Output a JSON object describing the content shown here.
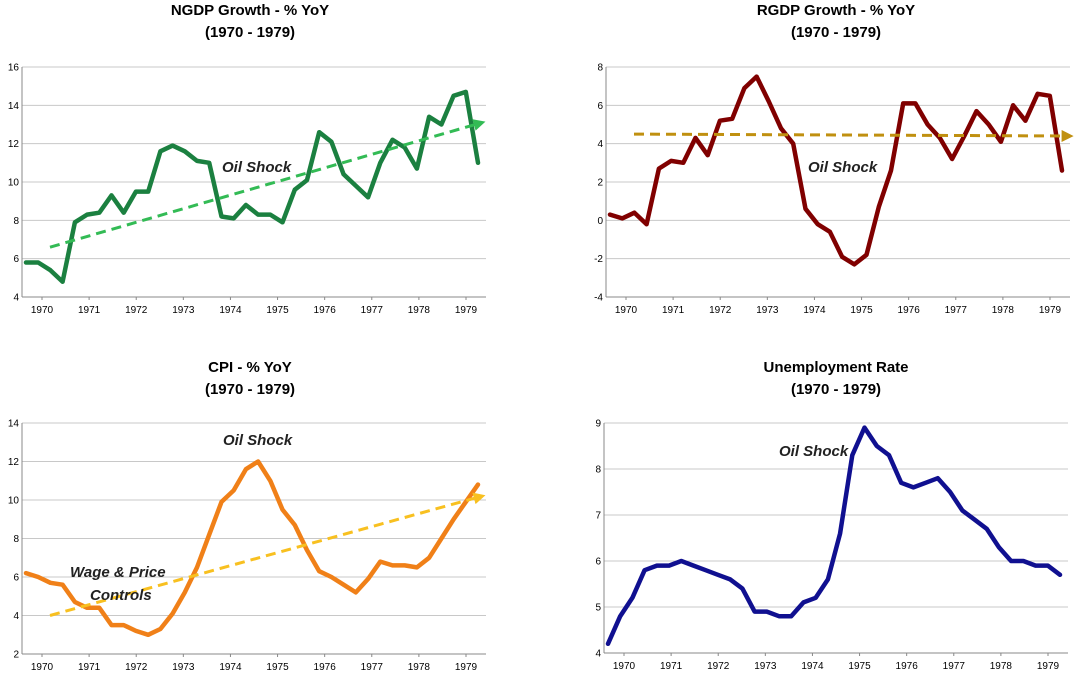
{
  "x_ticks": [
    "1970",
    "1971",
    "1972",
    "1973",
    "1974",
    "1975",
    "1976",
    "1977",
    "1978",
    "1979"
  ],
  "chart_data": [
    {
      "type": "line",
      "title": "NGDP Growth - % YoY",
      "subtitle": "(1970 - 1979)",
      "ylim": [
        4,
        16
      ],
      "yticks": [
        "4",
        "6",
        "8",
        "10",
        "12",
        "14",
        "16"
      ],
      "color": "#1B8040",
      "trend_color": "#33BB55",
      "series": [
        {
          "values": [
            5.8,
            5.8,
            5.4,
            4.8,
            7.9,
            8.3,
            8.4,
            9.3,
            8.4,
            9.5,
            9.5,
            11.6,
            11.9,
            11.6,
            11.1,
            11.0,
            8.2,
            8.1,
            8.8,
            8.3,
            8.3,
            7.9,
            9.6,
            10.1,
            12.6,
            12.1,
            10.4,
            9.8,
            9.2,
            11.0,
            12.2,
            11.8,
            10.7,
            13.4,
            13.0,
            14.5,
            14.7,
            11.0
          ]
        }
      ],
      "trend": [
        6.6,
        13.1
      ],
      "annotations": [
        "Oil Shock"
      ],
      "grid": true
    },
    {
      "type": "line",
      "title": "RGDP Growth - % YoY",
      "subtitle": "(1970 - 1979)",
      "ylim": [
        -4,
        8
      ],
      "yticks": [
        "-4",
        "-2",
        "0",
        "2",
        "4",
        "6",
        "8"
      ],
      "color": "#800000",
      "trend_color": "#C09010",
      "series": [
        {
          "values": [
            0.3,
            0.1,
            0.4,
            -0.2,
            2.7,
            3.1,
            3.0,
            4.3,
            3.4,
            5.2,
            5.3,
            6.9,
            7.5,
            6.2,
            4.8,
            4.0,
            0.6,
            -0.2,
            -0.6,
            -1.9,
            -2.3,
            -1.8,
            0.7,
            2.6,
            6.1,
            6.1,
            5.0,
            4.3,
            3.2,
            4.4,
            5.7,
            5.0,
            4.1,
            6.0,
            5.2,
            6.6,
            6.5,
            2.6
          ]
        }
      ],
      "trend": [
        4.5,
        4.4
      ],
      "annotations": [
        "Oil Shock"
      ],
      "grid": true
    },
    {
      "type": "line",
      "title": "CPI - % YoY",
      "subtitle": "(1970 - 1979)",
      "ylim": [
        2,
        14
      ],
      "yticks": [
        "2",
        "4",
        "6",
        "8",
        "10",
        "12",
        "14"
      ],
      "color": "#F08018",
      "trend_color": "#F8C020",
      "series": [
        {
          "values": [
            6.2,
            6.0,
            5.7,
            5.6,
            4.7,
            4.4,
            4.4,
            3.5,
            3.5,
            3.2,
            3.0,
            3.3,
            4.1,
            5.2,
            6.5,
            8.2,
            9.9,
            10.5,
            11.6,
            12.0,
            11.0,
            9.5,
            8.7,
            7.4,
            6.3,
            6.0,
            5.6,
            5.2,
            5.9,
            6.8,
            6.6,
            6.6,
            6.5,
            7.0,
            8.0,
            9.0,
            9.9,
            10.8
          ]
        }
      ],
      "trend": [
        4.0,
        10.2
      ],
      "annotations": [
        "Oil Shock",
        "Wage & Price",
        "Controls"
      ],
      "grid": true
    },
    {
      "type": "line",
      "title": "Unemployment Rate",
      "subtitle": "(1970 - 1979)",
      "ylim": [
        4,
        9
      ],
      "yticks": [
        "4",
        "5",
        "6",
        "7",
        "8",
        "9"
      ],
      "color": "#101090",
      "series": [
        {
          "values": [
            4.2,
            4.8,
            5.2,
            5.8,
            5.9,
            5.9,
            6.0,
            5.9,
            5.8,
            5.7,
            5.6,
            5.4,
            4.9,
            4.9,
            4.8,
            4.8,
            5.1,
            5.2,
            5.6,
            6.6,
            8.3,
            8.9,
            8.5,
            8.3,
            7.7,
            7.6,
            7.7,
            7.8,
            7.5,
            7.1,
            6.9,
            6.7,
            6.3,
            6.0,
            6.0,
            5.9,
            5.9,
            5.7
          ]
        }
      ],
      "annotations": [
        "Oil Shock"
      ],
      "grid": true
    }
  ]
}
